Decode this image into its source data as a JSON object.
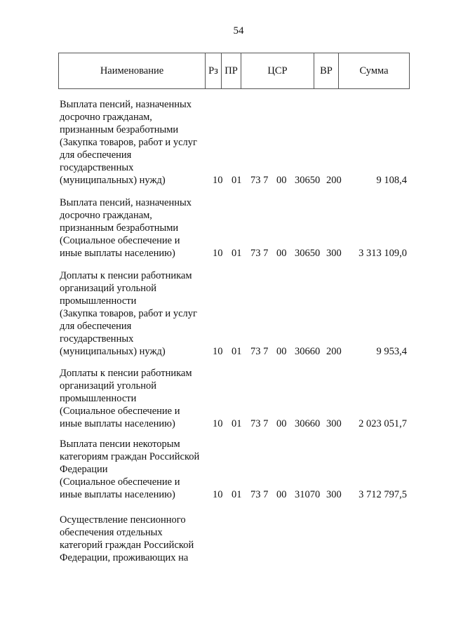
{
  "page_number": "54",
  "header": {
    "name": "Наименование",
    "rz": "Рз",
    "pr": "ПР",
    "csr": "ЦСР",
    "vr": "ВР",
    "sum": "Сумма"
  },
  "rows": [
    {
      "name": "Выплата пенсий, назначенных\nдосрочно гражданам,\nпризнанным безработными\n(Закупка товаров, работ и услуг\nдля обеспечения\nгосударственных\n(муниципальных) нужд)",
      "rz": "10",
      "pr": "01",
      "csr1": "73 7",
      "csr2": "00",
      "csr3": "30650",
      "vr": "200",
      "sum": "9 108,4"
    },
    {
      "name": "Выплата пенсий, назначенных\nдосрочно гражданам,\nпризнанным безработными\n(Социальное обеспечение и\nиные выплаты населению)",
      "rz": "10",
      "pr": "01",
      "csr1": "73 7",
      "csr2": "00",
      "csr3": "30650",
      "vr": "300",
      "sum": "3 313 109,0"
    },
    {
      "name": "Доплаты к пенсии работникам\nорганизаций угольной\nпромышленности\n(Закупка товаров, работ и услуг\nдля обеспечения\nгосударственных\n(муниципальных) нужд)",
      "rz": "10",
      "pr": "01",
      "csr1": "73 7",
      "csr2": "00",
      "csr3": "30660",
      "vr": "200",
      "sum": "9 953,4"
    },
    {
      "name": "Доплаты к пенсии работникам\nорганизаций угольной\nпромышленности\n(Социальное обеспечение и\nиные выплаты населению)",
      "rz": "10",
      "pr": "01",
      "csr1": "73 7",
      "csr2": "00",
      "csr3": "30660",
      "vr": "300",
      "sum": "2 023 051,7"
    },
    {
      "name": "Выплата пенсии некоторым\nкатегориям граждан Российской\nФедерации\n(Социальное обеспечение и\nиные выплаты населению)",
      "rz": "10",
      "pr": "01",
      "csr1": "73 7",
      "csr2": "00",
      "csr3": "31070",
      "vr": "300",
      "sum": "3 712 797,5"
    },
    {
      "name": "Осуществление пенсионного\nобеспечения отдельных\nкатегорий граждан Российской\nФедерации, проживающих на"
    }
  ]
}
